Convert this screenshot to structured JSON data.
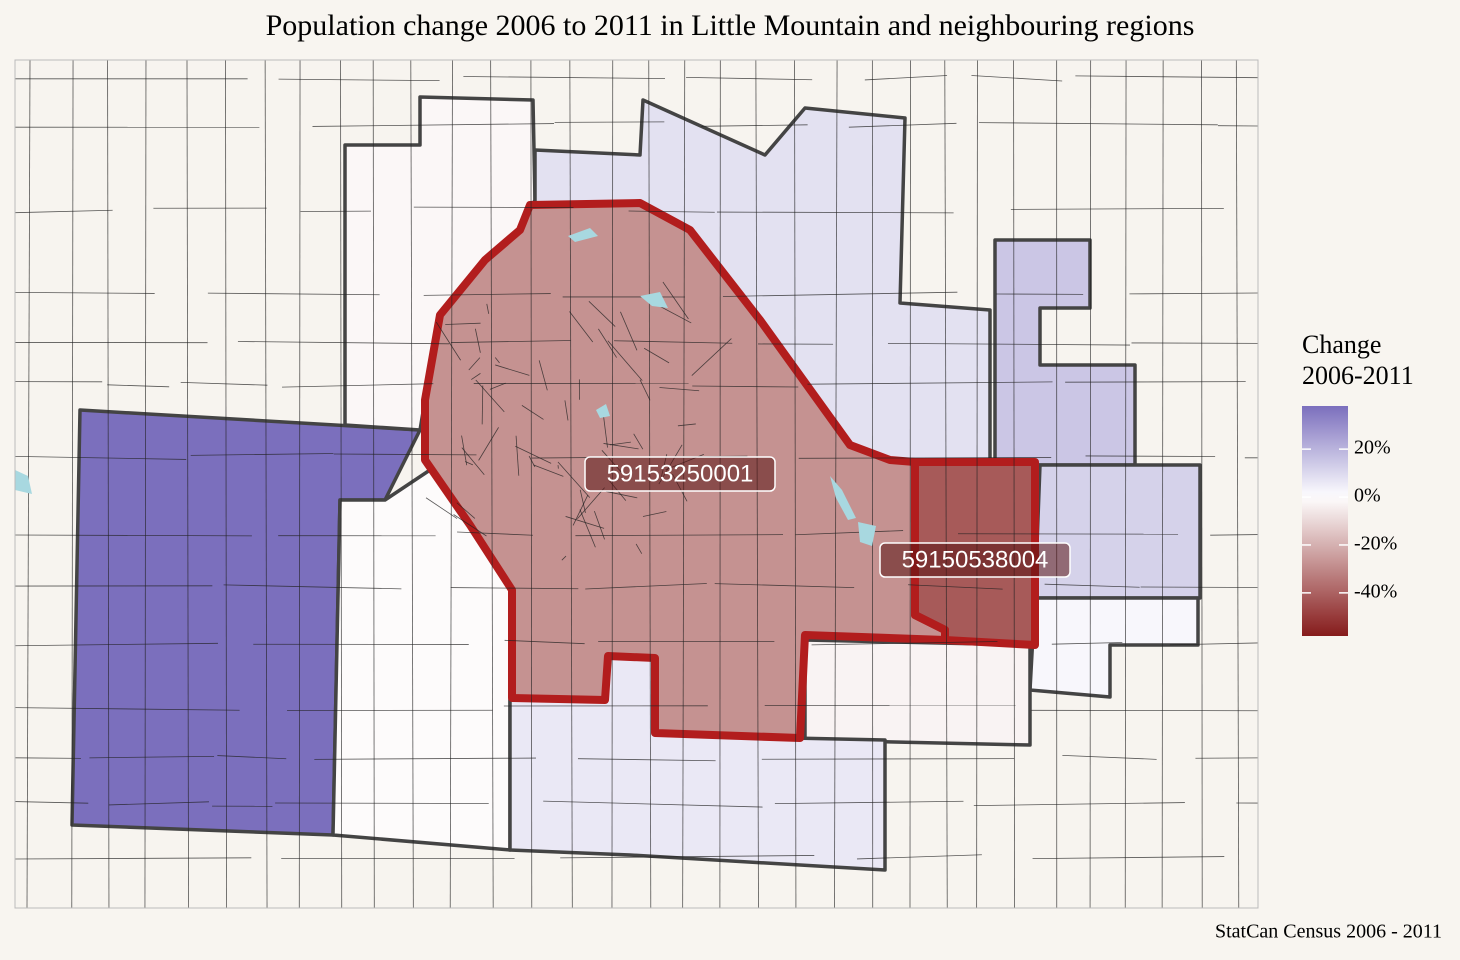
{
  "chart_data": {
    "type": "choropleth",
    "title": "Population change 2006 to 2011 in Little Mountain and neighbouring regions",
    "caption": "StatCan Census 2006 - 2011",
    "legend_title": [
      "Change",
      "2006-2011"
    ],
    "lim": [
      -58,
      38
    ],
    "ticks": [
      {
        "value": 20,
        "label": "20%"
      },
      {
        "value": 0,
        "label": "0%"
      },
      {
        "value": -20,
        "label": "-20%"
      },
      {
        "value": -40,
        "label": "-40%"
      }
    ],
    "colors": {
      "low": "#861b1b",
      "mid": "#ffffff",
      "high": "#7b6fbd"
    },
    "regions": [
      {
        "change": 38
      },
      {
        "change": -36,
        "label": "59153250001"
      },
      {
        "change": -55,
        "label": "59150538004"
      },
      {
        "change": -2
      },
      {
        "change": 8
      },
      {
        "change": 15
      },
      {
        "change": 12
      },
      {
        "change": 2
      },
      {
        "change": -3
      },
      {
        "change": -1
      },
      {
        "change": 6
      }
    ]
  }
}
